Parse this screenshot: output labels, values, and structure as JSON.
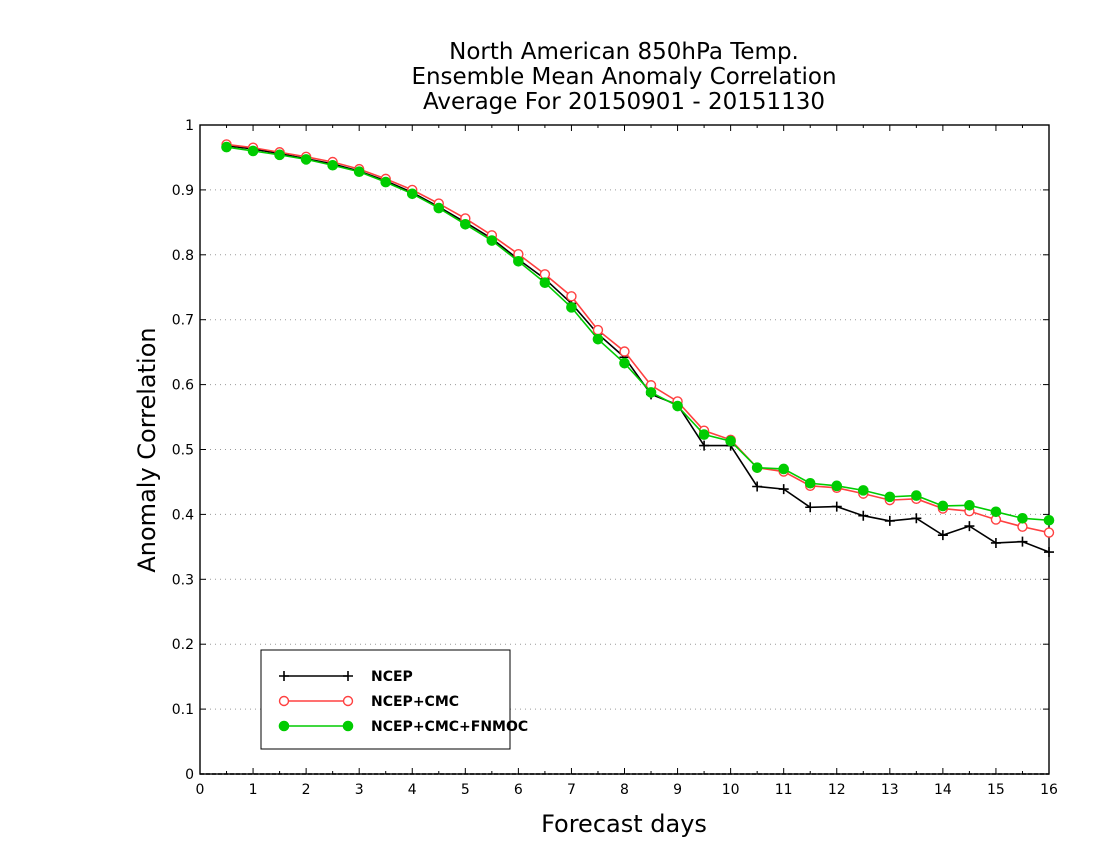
{
  "chart_data": {
    "type": "line",
    "title": [
      "North American 850hPa Temp.",
      "Ensemble Mean Anomaly Correlation",
      "Average For 20150901 - 20151130"
    ],
    "xlabel": "Forecast days",
    "ylabel": "Anomaly Correlation",
    "xlim": [
      0,
      16
    ],
    "ylim": [
      0,
      1
    ],
    "xticks": [
      "0",
      "1",
      "2",
      "3",
      "4",
      "5",
      "6",
      "7",
      "8",
      "9",
      "10",
      "11",
      "12",
      "13",
      "14",
      "15",
      "16"
    ],
    "yticks": [
      "0",
      "0.1",
      "0.2",
      "0.3",
      "0.4",
      "0.5",
      "0.6",
      "0.7",
      "0.8",
      "0.9",
      "1"
    ],
    "grid": "horizontal dotted",
    "legend_position": "bottom-left",
    "x": [
      0.5,
      1,
      1.5,
      2,
      2.5,
      3,
      3.5,
      4,
      4.5,
      5,
      5.5,
      6,
      6.5,
      7,
      7.5,
      8,
      8.5,
      9,
      9.5,
      10,
      10.5,
      11,
      11.5,
      12,
      12.5,
      13,
      13.5,
      14,
      14.5,
      15,
      15.5,
      16
    ],
    "series": [
      {
        "name": "NCEP",
        "color": "#000000",
        "marker": "plus",
        "values": [
          0.968,
          0.963,
          0.956,
          0.948,
          0.94,
          0.929,
          0.914,
          0.896,
          0.874,
          0.85,
          0.825,
          0.793,
          0.763,
          0.725,
          0.678,
          0.642,
          0.585,
          0.569,
          0.506,
          0.506,
          0.443,
          0.439,
          0.411,
          0.412,
          0.398,
          0.39,
          0.394,
          0.368,
          0.382,
          0.356,
          0.358,
          0.342
        ]
      },
      {
        "name": "NCEP+CMC",
        "color": "#ff4040",
        "marker": "open-circle",
        "values": [
          0.97,
          0.965,
          0.958,
          0.951,
          0.943,
          0.932,
          0.917,
          0.9,
          0.879,
          0.856,
          0.83,
          0.801,
          0.77,
          0.736,
          0.684,
          0.651,
          0.599,
          0.574,
          0.529,
          0.515,
          0.472,
          0.466,
          0.444,
          0.441,
          0.432,
          0.422,
          0.424,
          0.409,
          0.405,
          0.392,
          0.381,
          0.372
        ]
      },
      {
        "name": "NCEP+CMC+FNMOC",
        "color": "#00cc00",
        "marker": "filled-circle",
        "values": [
          0.966,
          0.96,
          0.954,
          0.947,
          0.938,
          0.928,
          0.912,
          0.894,
          0.872,
          0.847,
          0.822,
          0.79,
          0.757,
          0.719,
          0.67,
          0.633,
          0.588,
          0.567,
          0.523,
          0.513,
          0.472,
          0.47,
          0.448,
          0.444,
          0.437,
          0.427,
          0.429,
          0.413,
          0.414,
          0.404,
          0.394,
          0.391
        ]
      }
    ]
  }
}
